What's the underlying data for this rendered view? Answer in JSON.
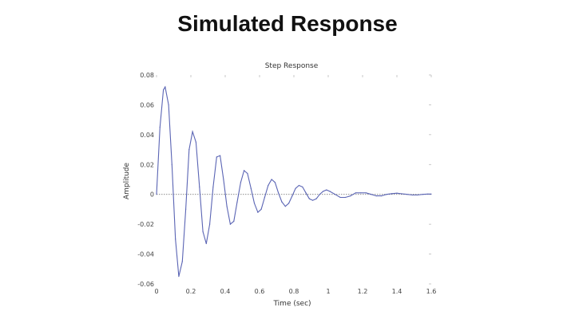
{
  "slide": {
    "title": "Simulated Response"
  },
  "chart_data": {
    "type": "line",
    "title": "Step Response",
    "xlabel": "Time (sec)",
    "ylabel": "Amplitude",
    "xlim": [
      0,
      1.6
    ],
    "ylim": [
      -0.06,
      0.08
    ],
    "x_ticks": [
      0,
      0.2,
      0.4,
      0.6,
      0.8,
      1,
      1.2,
      1.4,
      1.6
    ],
    "x_tick_labels": [
      "0",
      "0.2",
      "0.4",
      "0.6",
      "0.8",
      "1",
      "1.2",
      "1.4",
      "1.6"
    ],
    "y_ticks": [
      0.08,
      0.06,
      0.04,
      0.02,
      0,
      -0.02,
      -0.04,
      -0.06
    ],
    "y_tick_labels": [
      "0.08",
      "0.06",
      "0.04",
      "0.02",
      "0",
      "-0.02",
      "-0.04",
      "-0.06"
    ],
    "grid": false,
    "reference_line": {
      "y": 0,
      "style": "dotted"
    },
    "series": [
      {
        "line_color": "#5a64b4",
        "x": [
          0,
          0.02,
          0.04,
          0.05,
          0.07,
          0.09,
          0.11,
          0.13,
          0.15,
          0.17,
          0.19,
          0.21,
          0.23,
          0.25,
          0.27,
          0.29,
          0.31,
          0.33,
          0.35,
          0.37,
          0.39,
          0.41,
          0.43,
          0.45,
          0.47,
          0.49,
          0.51,
          0.53,
          0.55,
          0.57,
          0.59,
          0.61,
          0.63,
          0.65,
          0.67,
          0.69,
          0.71,
          0.73,
          0.75,
          0.77,
          0.79,
          0.81,
          0.83,
          0.85,
          0.87,
          0.89,
          0.91,
          0.93,
          0.95,
          0.97,
          0.99,
          1.01,
          1.04,
          1.07,
          1.1,
          1.13,
          1.16,
          1.19,
          1.22,
          1.25,
          1.28,
          1.31,
          1.34,
          1.37,
          1.4,
          1.43,
          1.46,
          1.49,
          1.52,
          1.55,
          1.58,
          1.6
        ],
        "y": [
          0,
          0.045,
          0.07,
          0.072,
          0.06,
          0.02,
          -0.03,
          -0.055,
          -0.045,
          -0.01,
          0.03,
          0.042,
          0.035,
          0.005,
          -0.025,
          -0.033,
          -0.02,
          0.005,
          0.025,
          0.026,
          0.01,
          -0.008,
          -0.02,
          -0.018,
          -0.005,
          0.008,
          0.016,
          0.014,
          0.004,
          -0.006,
          -0.012,
          -0.01,
          -0.002,
          0.006,
          0.01,
          0.008,
          0.001,
          -0.005,
          -0.008,
          -0.006,
          -0.001,
          0.004,
          0.006,
          0.005,
          0.001,
          -0.003,
          -0.004,
          -0.003,
          0,
          0.002,
          0.003,
          0.002,
          0,
          -0.002,
          -0.002,
          -0.001,
          0.001,
          0.001,
          0.001,
          0,
          -0.001,
          -0.001,
          0,
          0.0005,
          0.0008,
          0.0004,
          0,
          -0.0004,
          -0.0004,
          0,
          0.0002,
          0.0002
        ]
      }
    ]
  }
}
